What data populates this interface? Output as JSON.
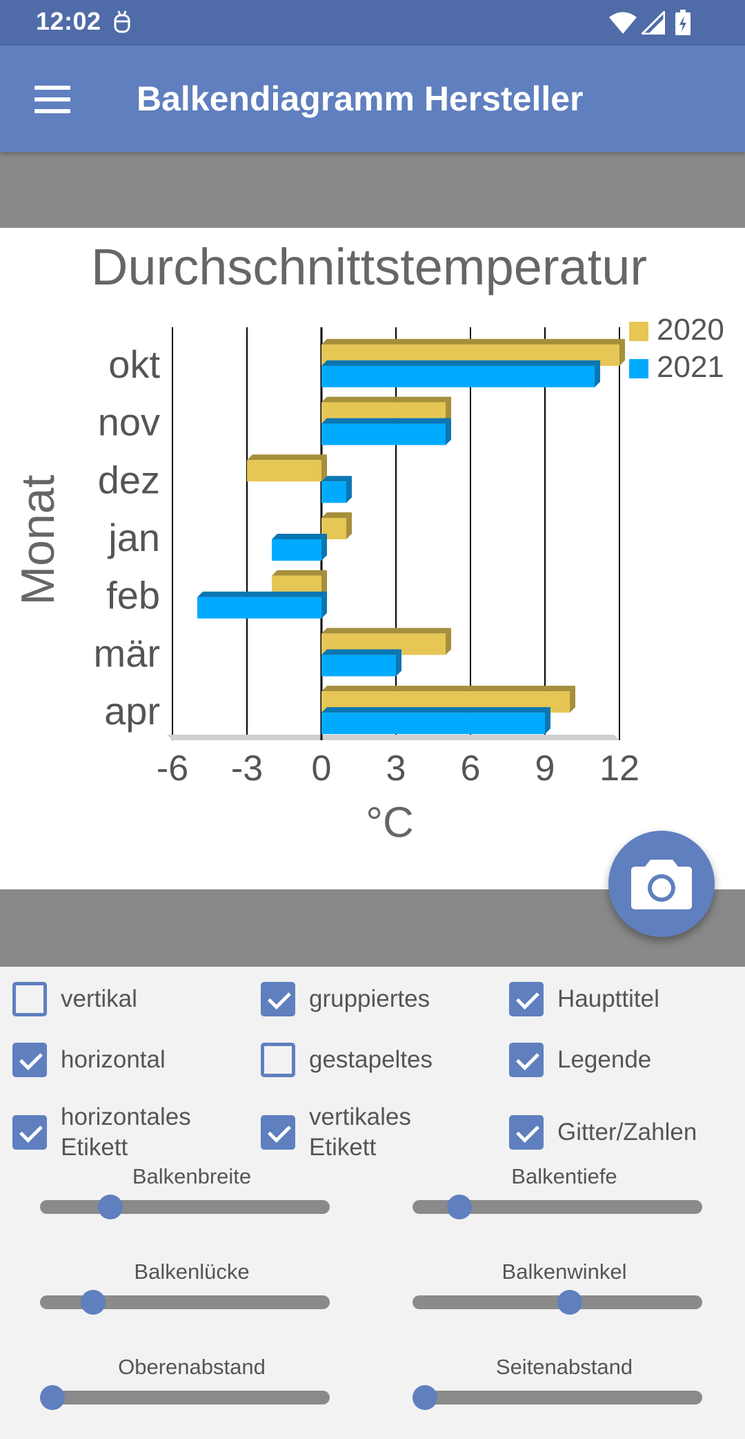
{
  "status_bar": {
    "time": "12:02"
  },
  "app_bar": {
    "title": "Balkendiagramm Hersteller"
  },
  "chart_data": {
    "type": "bar",
    "orientation": "horizontal",
    "title": "Durchschnittstemperatur",
    "xlabel": "°C",
    "ylabel": "Monat",
    "categories": [
      "okt",
      "nov",
      "dez",
      "jan",
      "feb",
      "mär",
      "apr"
    ],
    "series": [
      {
        "name": "2020",
        "color": "#e6c654",
        "values": [
          12,
          5,
          -3,
          1,
          -2,
          5,
          10
        ]
      },
      {
        "name": "2021",
        "color": "#00aaff",
        "values": [
          11,
          5,
          1,
          -2,
          -5,
          3,
          9
        ]
      }
    ],
    "xlim": [
      -6,
      12
    ],
    "xticks": [
      -6,
      -3,
      0,
      3,
      6,
      9,
      12
    ],
    "grid": true,
    "legend": "top-right"
  },
  "checkboxes": [
    {
      "label": "vertikal",
      "checked": false
    },
    {
      "label": "gruppiertes",
      "checked": true
    },
    {
      "label": "Haupttitel",
      "checked": true
    },
    {
      "label": "horizontal",
      "checked": true
    },
    {
      "label": "gestapeltes",
      "checked": false
    },
    {
      "label": "Legende",
      "checked": true
    },
    {
      "label_line1": "horizontales",
      "label_line2": "Etikett",
      "checked": true
    },
    {
      "label_line1": "vertikales",
      "label_line2": "Etikett",
      "checked": true
    },
    {
      "label": "Gitter/Zahlen",
      "checked": true
    }
  ],
  "sliders": [
    {
      "label": "Balkenbreite",
      "value": 0.2
    },
    {
      "label": "Balkentiefe",
      "value": 0.12
    },
    {
      "label": "Balkenlücke",
      "value": 0.14
    },
    {
      "label": "Balkenwinkel",
      "value": 0.5
    },
    {
      "label": "Oberenabstand",
      "value": 0.0
    },
    {
      "label": "Seitenabstand",
      "value": 0.0
    }
  ],
  "colors": {
    "primary": "#5f7fbf",
    "status_bar": "#4f6ca8"
  }
}
